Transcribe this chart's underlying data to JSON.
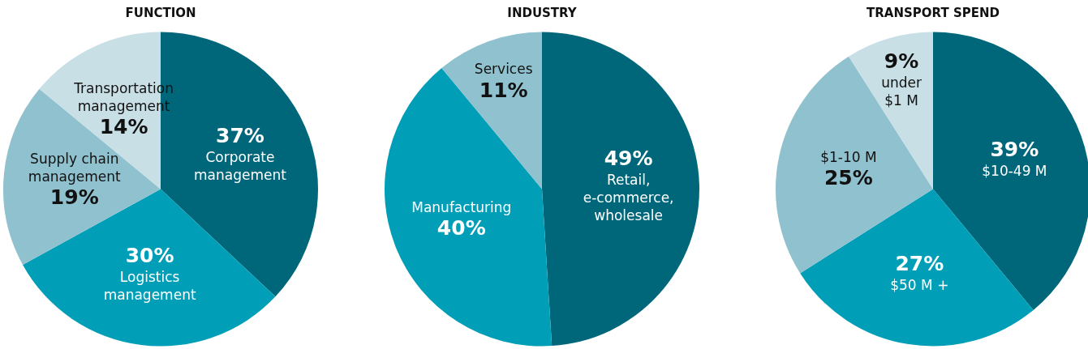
{
  "chart_data": [
    {
      "type": "pie",
      "title": "FUNCTION",
      "categories": [
        "Corporate management",
        "Logistics management",
        "Supply chain management",
        "Transportation management"
      ],
      "values": [
        37,
        30,
        19,
        14
      ],
      "value_labels": [
        "37%",
        "30%",
        "19%",
        "14%"
      ],
      "colors": [
        "#00677b",
        "#009fb7",
        "#8fc1cf",
        "#c8dfe6"
      ]
    },
    {
      "type": "pie",
      "title": "INDUSTRY",
      "categories": [
        "Retail, e-commerce, wholesale",
        "Manufacturing",
        "Services"
      ],
      "values": [
        49,
        40,
        11
      ],
      "value_labels": [
        "49%",
        "40%",
        "11%"
      ],
      "colors": [
        "#00677b",
        "#009fb7",
        "#8fc1cf"
      ]
    },
    {
      "type": "pie",
      "title": "TRANSPORT SPEND",
      "categories": [
        "$10-49 M",
        "$50 M +",
        "$1-10 M",
        "under $1 M"
      ],
      "values": [
        39,
        27,
        25,
        9
      ],
      "value_labels": [
        "39%",
        "27%",
        "25%",
        "9%"
      ],
      "colors": [
        "#00677b",
        "#009fb7",
        "#8fc1cf",
        "#c8dfe6"
      ]
    }
  ]
}
